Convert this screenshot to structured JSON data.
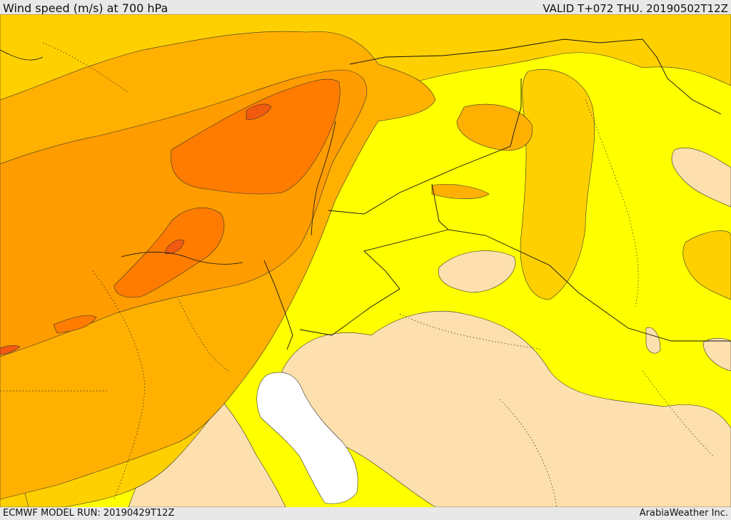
{
  "header": {
    "title": "Wind speed (m/s) at 700 hPa",
    "valid": "VALID T+072 THU. 20190502T12Z"
  },
  "footer": {
    "model_run": "ECMWF MODEL RUN: 20190429T12Z",
    "credit": "ArabiaWeather Inc."
  },
  "colors": {
    "calm": "#fde0ad",
    "light": "#ffff00",
    "moderate": "#ffd000",
    "fresh": "#ffb000",
    "strong": "#ff9c00",
    "stronger": "#ff7c00",
    "strongest": "#f25a10",
    "water_no_data": "#ffffff"
  }
}
